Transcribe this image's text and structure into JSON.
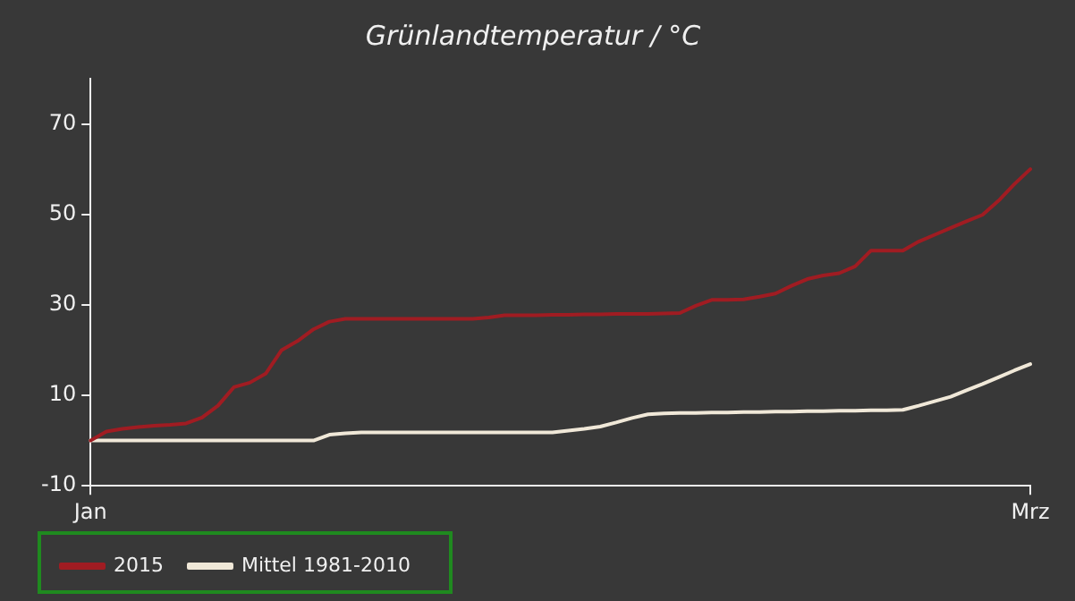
{
  "chart_data": {
    "type": "line",
    "title": "Grünlandtemperatur / °C",
    "categories": [
      "Jan",
      null,
      null,
      null,
      null,
      null,
      null,
      null,
      null,
      null,
      null,
      null,
      null,
      null,
      null,
      null,
      null,
      null,
      null,
      null,
      null,
      null,
      null,
      null,
      null,
      null,
      null,
      null,
      null,
      null,
      null,
      null,
      null,
      null,
      null,
      null,
      null,
      null,
      null,
      null,
      null,
      null,
      null,
      null,
      null,
      null,
      null,
      null,
      null,
      null,
      null,
      null,
      null,
      null,
      null,
      null,
      null,
      null,
      null,
      "Mrz"
    ],
    "ylim": [
      -10,
      80
    ],
    "yticks": [
      -10,
      10,
      30,
      50,
      70
    ],
    "grid": false,
    "legend": "bottom left",
    "marker": "none",
    "line_style": "solid",
    "series": [
      {
        "name": "2015",
        "color": "#a01c22",
        "values": [
          0,
          2,
          2.6,
          3,
          3.3,
          3.5,
          3.8,
          5.1,
          7.7,
          11.8,
          12.8,
          14.8,
          20,
          22,
          24.6,
          26.3,
          26.9,
          26.9,
          26.9,
          26.9,
          26.9,
          26.9,
          26.9,
          26.9,
          26.9,
          27.2,
          27.7,
          27.7,
          27.7,
          27.8,
          27.8,
          27.9,
          27.9,
          28,
          28,
          28,
          28.1,
          28.2,
          29.8,
          31.1,
          31.1,
          31.2,
          31.8,
          32.5,
          34.2,
          35.7,
          36.5,
          37,
          38.5,
          42,
          42,
          42,
          44,
          45.5,
          47,
          48.5,
          49.9,
          53,
          56.7,
          60
        ]
      },
      {
        "name": "Mittel 1981-2010",
        "color": "#f0e8d8",
        "values": [
          0,
          0,
          0,
          0,
          0,
          0,
          0,
          0,
          0,
          0,
          0,
          0,
          0,
          0,
          0,
          1.3,
          1.6,
          1.8,
          1.8,
          1.8,
          1.8,
          1.8,
          1.8,
          1.8,
          1.8,
          1.8,
          1.8,
          1.8,
          1.8,
          1.8,
          2.2,
          2.6,
          3.1,
          4,
          5,
          5.8,
          6,
          6.1,
          6.1,
          6.2,
          6.2,
          6.3,
          6.3,
          6.4,
          6.4,
          6.5,
          6.5,
          6.6,
          6.6,
          6.7,
          6.7,
          6.8,
          7.7,
          8.7,
          9.7,
          11.1,
          12.5,
          14,
          15.5,
          16.9
        ]
      }
    ]
  }
}
